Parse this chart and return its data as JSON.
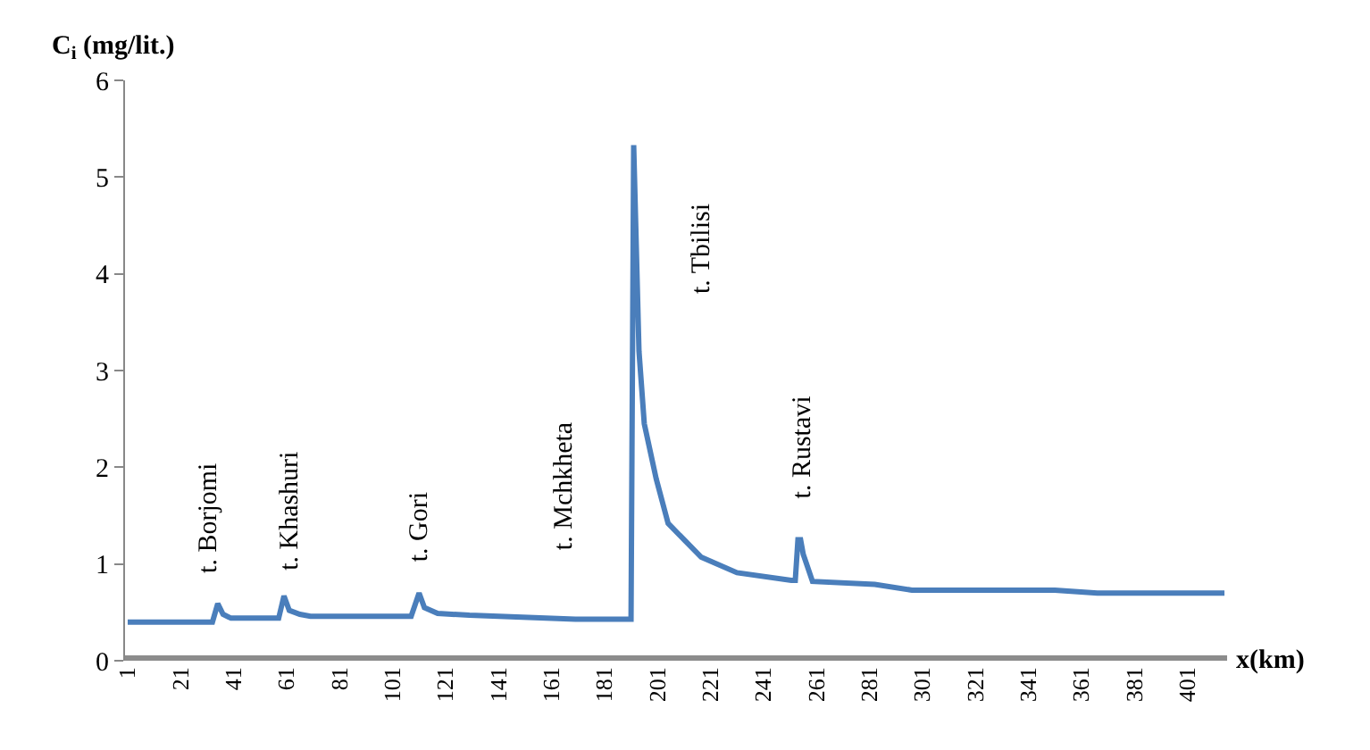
{
  "chart_data": {
    "type": "line",
    "ylabel": "C$_{i}$ (mg/lit.)",
    "xlabel": "x(km)",
    "x": [
      1,
      33,
      35,
      37,
      40,
      58,
      60,
      62,
      66,
      70,
      108,
      111,
      113,
      118,
      130,
      150,
      170,
      191,
      192,
      194,
      196,
      200.5,
      205,
      217.5,
      231,
      251.5,
      253,
      254,
      255,
      256,
      259.5,
      283,
      297,
      351,
      367,
      415
    ],
    "series": [
      {
        "color": "#4a7ebb",
        "values": [
          0.4,
          0.4,
          0.59,
          0.48,
          0.44,
          0.44,
          0.67,
          0.52,
          0.48,
          0.46,
          0.46,
          0.7,
          0.55,
          0.49,
          0.47,
          0.45,
          0.43,
          0.43,
          5.33,
          3.2,
          2.45,
          1.88,
          1.42,
          1.07,
          0.91,
          0.83,
          0.83,
          1.25,
          1.25,
          1.1,
          0.82,
          0.79,
          0.73,
          0.73,
          0.7,
          0.7
        ]
      }
    ],
    "xlim": [
      0,
      416
    ],
    "ylim": [
      0,
      6
    ],
    "xticks": [
      1,
      21,
      41,
      61,
      81,
      101,
      121,
      141,
      161,
      181,
      201,
      221,
      241,
      261,
      281,
      301,
      321,
      341,
      361,
      381,
      401
    ],
    "yticks": [
      0,
      1,
      2,
      3,
      4,
      5,
      6
    ],
    "marker": "none",
    "line_style": "solid",
    "annotations": [
      "t. Borjomi",
      "t. Khashuri",
      "t. Gori",
      "t. Mchkheta",
      "t. Tbilisi",
      "t. Rustavi"
    ]
  }
}
